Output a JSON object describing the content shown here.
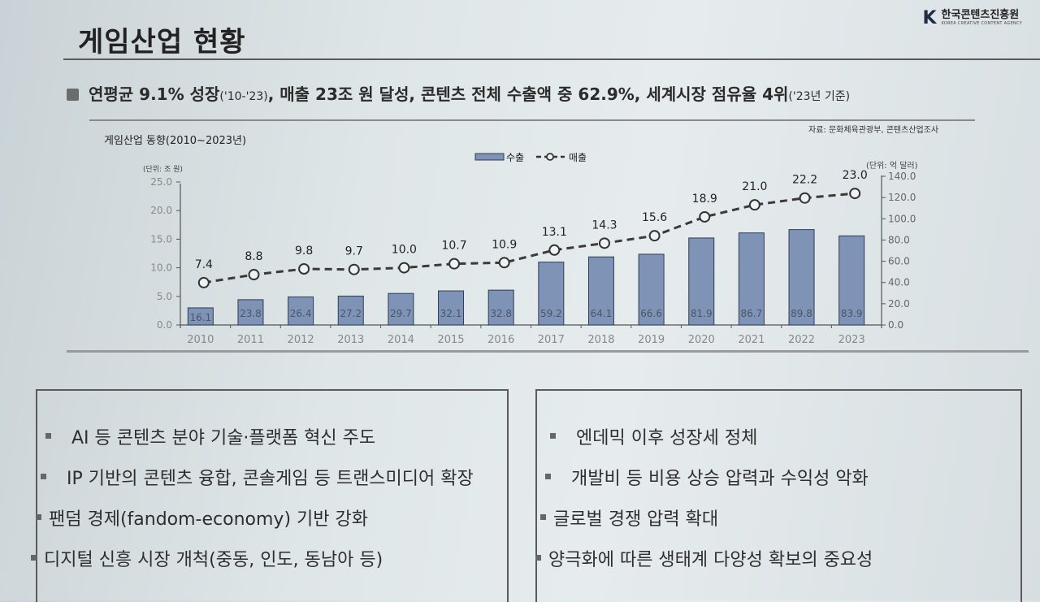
{
  "slide": {
    "title": "게임산업 현황",
    "logo_mark": "K",
    "logo_name": "한국콘텐츠진흥원",
    "logo_sub": "KOREA CREATIVE CONTENT AGENCY",
    "subtitle_main": "연평균 9.1% 성장",
    "subtitle_period": "('10-'23)",
    "subtitle_rest": ", 매출 23조 원 달성, 콘텐츠 전체 수출액 중 62.9%, 세계시장 점유율 4위",
    "subtitle_basis": "('23년 기준)",
    "source": "자료: 문화체육관광부, 콘텐츠산업조사",
    "chart_title": "게임산업 동향(2010~2023년)"
  },
  "chart_data": {
    "type": "bar+line",
    "categories": [
      "2010",
      "2011",
      "2012",
      "2013",
      "2014",
      "2015",
      "2016",
      "2017",
      "2018",
      "2019",
      "2020",
      "2021",
      "2022",
      "2023"
    ],
    "series": [
      {
        "name": "수출",
        "kind": "bar",
        "axis": "right",
        "color": "#7e93b6",
        "values": [
          16.1,
          23.8,
          26.4,
          27.2,
          29.7,
          32.1,
          32.8,
          59.2,
          64.1,
          66.6,
          81.9,
          86.7,
          89.8,
          83.9
        ]
      },
      {
        "name": "매출",
        "kind": "line",
        "axis": "left",
        "color": "#3a3a3a",
        "values": [
          7.4,
          8.8,
          9.8,
          9.7,
          10.0,
          10.7,
          10.9,
          13.1,
          14.3,
          15.6,
          18.9,
          21.0,
          22.2,
          23.0
        ]
      }
    ],
    "left_axis": {
      "unit": "(단위: 조 원)",
      "ylim": [
        0,
        25
      ],
      "ticks": [
        "0.0",
        "5.0",
        "10.0",
        "15.0",
        "20.0",
        "25.0"
      ]
    },
    "right_axis": {
      "unit": "(단위: 억 달러)",
      "ylim": [
        0,
        140
      ],
      "ticks": [
        "0.0",
        "20.0",
        "40.0",
        "60.0",
        "80.0",
        "100.0",
        "120.0",
        "140.0"
      ]
    },
    "legend_position": "top-center"
  },
  "left_box": {
    "items": [
      "AI 등 콘텐츠 분야 기술·플랫폼 혁신 주도",
      "IP 기반의 콘텐츠 융합, 콘솔게임 등 트랜스미디어 확장",
      "팬덤 경제(fandom-economy) 기반 강화",
      "디지털 신흥 시장 개척(중동, 인도, 동남아 등)"
    ]
  },
  "right_box": {
    "items": [
      "엔데믹 이후 성장세 정체",
      "개발비 등 비용 상승 압력과 수익성 악화",
      "글로벌 경쟁 압력 확대",
      "양극화에 따른 생태계 다양성 확보의 중요성"
    ]
  }
}
